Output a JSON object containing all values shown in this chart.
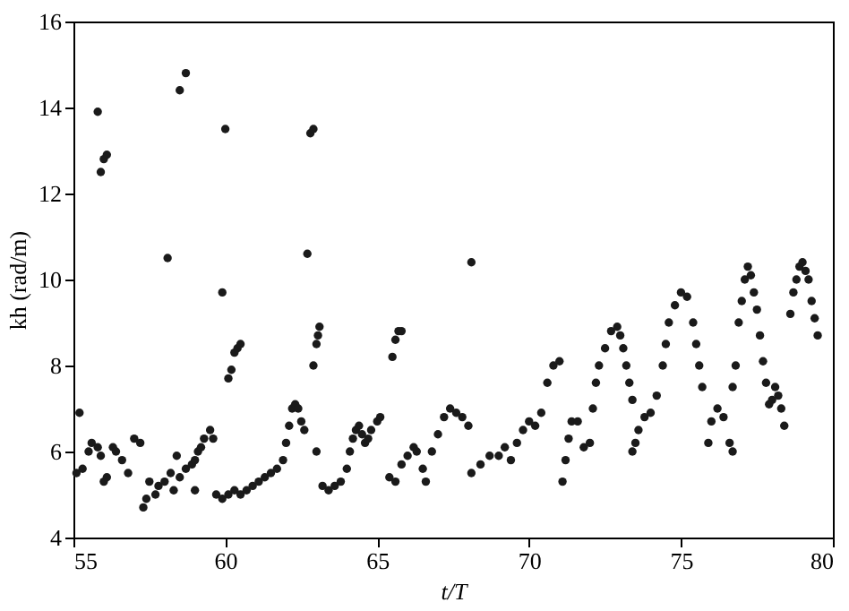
{
  "chart_data": {
    "type": "scatter",
    "xlabel": "t/T",
    "ylabel": "kh (rad/m)",
    "marker": "circle",
    "grid": false,
    "xlim": [
      55,
      80
    ],
    "ylim": [
      4,
      16
    ],
    "xticks": [
      55,
      60,
      65,
      70,
      75,
      80
    ],
    "yticks": [
      4,
      6,
      8,
      10,
      12,
      14,
      16
    ],
    "series": [
      {
        "color": "#1a1a1a",
        "x": [
          58.7,
          58.5,
          55.8,
          60,
          62.8,
          62.9,
          55.9,
          56,
          56.1,
          58.1,
          62.7,
          59.9,
          68.1,
          55.1,
          55.2,
          55.3,
          55.5,
          55.6,
          55.8,
          55.9,
          56.0,
          56.1,
          56.3,
          56.4,
          56.6,
          56.8,
          57.0,
          57.2,
          57.3,
          57.4,
          57.5,
          57.7,
          57.8,
          58.0,
          58.2,
          58.3,
          58.5,
          58.7,
          58.9,
          59.0,
          59.1,
          59.2,
          59.3,
          59.5,
          59.6,
          58.4,
          59.0,
          59.7,
          59.9,
          60.1,
          60.3,
          60.5,
          60.7,
          60.9,
          61.1,
          61.3,
          61.5,
          61.7,
          61.9,
          62.0,
          62.1,
          62.2,
          62.3,
          62.4,
          62.5,
          62.6,
          60.1,
          60.2,
          60.3,
          60.4,
          60.5,
          62.9,
          63.0,
          63.05,
          63.1,
          63.0,
          63.2,
          63.4,
          63.6,
          63.8,
          64.0,
          64.1,
          64.2,
          64.3,
          64.4,
          64.5,
          64.6,
          64.7,
          64.8,
          65.0,
          65.1,
          65.5,
          65.6,
          65.7,
          65.8,
          65.4,
          65.6,
          65.8,
          66.0,
          66.2,
          66.3,
          66.5,
          66.6,
          66.8,
          67.0,
          67.2,
          67.4,
          67.6,
          67.8,
          68.0,
          68.1,
          68.4,
          68.7,
          69.0,
          69.2,
          69.4,
          69.6,
          69.8,
          70.0,
          70.2,
          70.4,
          70.6,
          70.8,
          71.0,
          71.1,
          71.2,
          71.3,
          71.4,
          71.6,
          71.8,
          72.0,
          72.1,
          72.2,
          72.3,
          72.5,
          72.7,
          72.9,
          73.0,
          73.1,
          73.2,
          73.3,
          73.4,
          73.4,
          73.5,
          73.6,
          73.8,
          74.0,
          74.2,
          74.4,
          74.5,
          74.6,
          74.8,
          75.0,
          75.2,
          75.4,
          75.5,
          75.6,
          75.7,
          75.9,
          76.0,
          76.2,
          76.4,
          76.6,
          76.7,
          76.7,
          76.8,
          76.9,
          77.0,
          77.1,
          77.2,
          77.3,
          77.4,
          77.5,
          77.6,
          77.7,
          77.8,
          77.9,
          78.0,
          78.1,
          78.2,
          78.3,
          78.4,
          78.6,
          78.7,
          78.8,
          78.9,
          79.0,
          79.1,
          79.2,
          79.3,
          79.4,
          79.5
        ],
        "values": [
          14.8,
          14.4,
          13.9,
          13.5,
          13.4,
          13.5,
          12.5,
          12.8,
          12.9,
          10.5,
          10.6,
          9.7,
          10.4,
          5.5,
          6.9,
          5.6,
          6.0,
          6.2,
          6.1,
          5.9,
          5.3,
          5.4,
          6.1,
          6.0,
          5.8,
          5.5,
          6.3,
          6.2,
          4.7,
          4.9,
          5.3,
          5.0,
          5.2,
          5.3,
          5.5,
          5.1,
          5.4,
          5.6,
          5.7,
          5.8,
          6.0,
          6.1,
          6.3,
          6.5,
          6.3,
          5.9,
          5.1,
          5.0,
          4.9,
          5.0,
          5.1,
          5.0,
          5.1,
          5.2,
          5.3,
          5.4,
          5.5,
          5.6,
          5.8,
          6.2,
          6.6,
          7.0,
          7.1,
          7.0,
          6.7,
          6.5,
          7.7,
          7.9,
          8.3,
          8.4,
          8.5,
          8.0,
          8.5,
          8.7,
          8.9,
          6.0,
          5.2,
          5.1,
          5.2,
          5.3,
          5.6,
          6.0,
          6.3,
          6.5,
          6.6,
          6.4,
          6.2,
          6.3,
          6.5,
          6.7,
          6.8,
          8.2,
          8.6,
          8.8,
          8.8,
          5.4,
          5.3,
          5.7,
          5.9,
          6.1,
          6.0,
          5.6,
          5.3,
          6.0,
          6.4,
          6.8,
          7.0,
          6.9,
          6.8,
          6.6,
          5.5,
          5.7,
          5.9,
          5.9,
          6.1,
          5.8,
          6.2,
          6.5,
          6.7,
          6.6,
          6.9,
          7.6,
          8.0,
          8.1,
          5.3,
          5.8,
          6.3,
          6.7,
          6.7,
          6.1,
          6.2,
          7.0,
          7.6,
          8.0,
          8.4,
          8.8,
          8.9,
          8.7,
          8.4,
          8.0,
          7.6,
          7.2,
          6.0,
          6.2,
          6.5,
          6.8,
          6.9,
          7.3,
          8.0,
          8.5,
          9.0,
          9.4,
          9.7,
          9.6,
          9.0,
          8.5,
          8.0,
          7.5,
          6.2,
          6.7,
          7.0,
          6.8,
          6.2,
          6.0,
          7.5,
          8.0,
          9.0,
          9.5,
          10.0,
          10.3,
          10.1,
          9.7,
          9.3,
          8.7,
          8.1,
          7.6,
          7.1,
          7.2,
          7.5,
          7.3,
          7.0,
          6.6,
          9.2,
          9.7,
          10.0,
          10.3,
          10.4,
          10.2,
          10.0,
          9.5,
          9.1,
          8.7
        ]
      }
    ]
  }
}
